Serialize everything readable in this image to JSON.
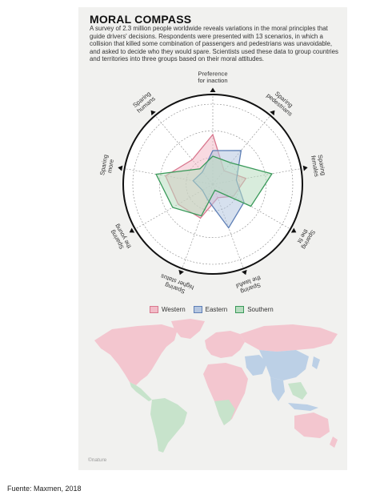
{
  "figure": {
    "title": "MORAL COMPASS",
    "intro": "A survey of 2.3 million people worldwide reveals variations in the moral principles that guide drivers' decisions. Respondents were presented with 13 scenarios, in which a collision that killed some combination of passengers and pedestrians was unavoidable, and asked to decide who they would spare. Scientists used these data to group countries and territories into three groups based on their moral attitudes.",
    "credit": "©nature"
  },
  "radar": {
    "axes": [
      {
        "lines": [
          "Preference",
          "for inaction"
        ]
      },
      {
        "lines": [
          "Sparing",
          "pedestrians"
        ]
      },
      {
        "lines": [
          "Sparing",
          "females"
        ]
      },
      {
        "lines": [
          "Sparing",
          "the fit"
        ]
      },
      {
        "lines": [
          "Sparing",
          "the lawful"
        ]
      },
      {
        "lines": [
          "Sparing",
          "higher status"
        ]
      },
      {
        "lines": [
          "Sparing",
          "the young"
        ]
      },
      {
        "lines": [
          "Sparing",
          "more"
        ]
      },
      {
        "lines": [
          "Sparing",
          "humans"
        ]
      }
    ],
    "rings": 3,
    "series": [
      {
        "name": "Western",
        "color": "#d9788f",
        "fill": "#f2bcc8",
        "values": [
          0.62,
          0.22,
          0.42,
          0.3,
          0.18,
          0.45,
          0.5,
          0.6,
          0.4
        ]
      },
      {
        "name": "Eastern",
        "color": "#5e7fb6",
        "fill": "#b5c6e0",
        "values": [
          0.42,
          0.55,
          0.3,
          0.45,
          0.58,
          0.2,
          0.15,
          0.25,
          0.2
        ]
      },
      {
        "name": "Southern",
        "color": "#3a9a5a",
        "fill": "#b8dcc0",
        "values": [
          0.35,
          0.35,
          0.75,
          0.55,
          0.08,
          0.42,
          0.58,
          0.72,
          0.25
        ]
      }
    ]
  },
  "legend": {
    "items": [
      {
        "label": "Western",
        "color": "#f2bcc8",
        "border": "#d9788f"
      },
      {
        "label": "Eastern",
        "color": "#b5c6e0",
        "border": "#5e7fb6"
      },
      {
        "label": "Southern",
        "color": "#b8dcc0",
        "border": "#3a9a5a"
      }
    ]
  },
  "map": {
    "colors": {
      "western": "#f3c6cf",
      "eastern": "#bcd0e6",
      "southern": "#c7e3cb",
      "none": "#f7f7f5"
    }
  },
  "source": {
    "text": "Fuente: Maxmen, 2018"
  }
}
